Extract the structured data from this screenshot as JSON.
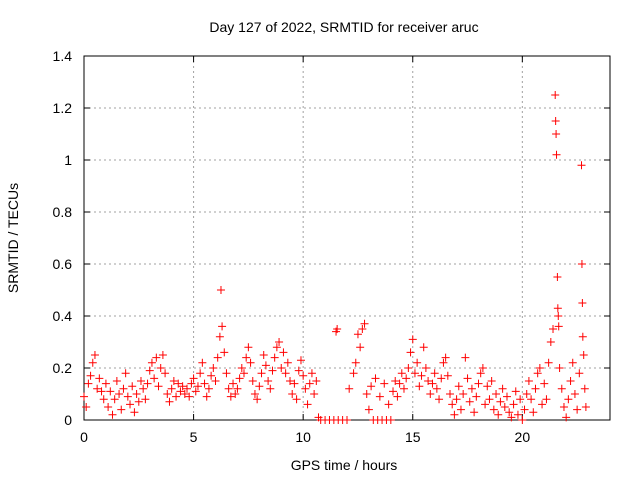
{
  "chart_data": {
    "type": "scatter",
    "title": "Day 127 of 2022, SRMTID for receiver aruc",
    "xlabel": "GPS time / hours",
    "ylabel": "SRMTID / TECUs",
    "xlim": [
      0,
      24
    ],
    "ylim": [
      0,
      1.4
    ],
    "x_ticks": [
      0,
      5,
      10,
      15,
      20
    ],
    "x_tick_labels": [
      "0",
      "5",
      "10",
      "15",
      "20"
    ],
    "y_ticks": [
      0,
      0.2,
      0.4,
      0.6,
      0.8,
      1.0,
      1.2,
      1.4
    ],
    "y_tick_labels": [
      "0",
      "0.2",
      "0.4",
      "0.6",
      "0.8",
      "1",
      "1.2",
      "1.4"
    ],
    "grid": true,
    "marker": "+",
    "color": "#ff0000",
    "series": [
      {
        "name": "SRMTID",
        "points": [
          [
            0.0,
            0.09
          ],
          [
            0.1,
            0.05
          ],
          [
            0.2,
            0.14
          ],
          [
            0.3,
            0.17
          ],
          [
            0.4,
            0.22
          ],
          [
            0.5,
            0.25
          ],
          [
            0.6,
            0.12
          ],
          [
            0.7,
            0.16
          ],
          [
            0.8,
            0.11
          ],
          [
            0.9,
            0.08
          ],
          [
            1.0,
            0.14
          ],
          [
            1.1,
            0.05
          ],
          [
            1.2,
            0.11
          ],
          [
            1.3,
            0.02
          ],
          [
            1.4,
            0.08
          ],
          [
            1.5,
            0.15
          ],
          [
            1.6,
            0.1
          ],
          [
            1.7,
            0.04
          ],
          [
            1.8,
            0.12
          ],
          [
            1.9,
            0.18
          ],
          [
            2.0,
            0.09
          ],
          [
            2.1,
            0.06
          ],
          [
            2.2,
            0.13
          ],
          [
            2.3,
            0.03
          ],
          [
            2.4,
            0.1
          ],
          [
            2.5,
            0.07
          ],
          [
            2.6,
            0.15
          ],
          [
            2.7,
            0.12
          ],
          [
            2.8,
            0.08
          ],
          [
            2.9,
            0.14
          ],
          [
            3.0,
            0.19
          ],
          [
            3.1,
            0.22
          ],
          [
            3.2,
            0.16
          ],
          [
            3.3,
            0.24
          ],
          [
            3.4,
            0.13
          ],
          [
            3.5,
            0.2
          ],
          [
            3.6,
            0.25
          ],
          [
            3.7,
            0.18
          ],
          [
            3.8,
            0.1
          ],
          [
            3.9,
            0.07
          ],
          [
            4.0,
            0.12
          ],
          [
            4.1,
            0.15
          ],
          [
            4.2,
            0.09
          ],
          [
            4.3,
            0.14
          ],
          [
            4.4,
            0.11
          ],
          [
            4.5,
            0.13
          ],
          [
            4.6,
            0.1
          ],
          [
            4.7,
            0.12
          ],
          [
            4.8,
            0.09
          ],
          [
            4.9,
            0.14
          ],
          [
            5.0,
            0.16
          ],
          [
            5.1,
            0.11
          ],
          [
            5.2,
            0.13
          ],
          [
            5.3,
            0.18
          ],
          [
            5.4,
            0.22
          ],
          [
            5.5,
            0.14
          ],
          [
            5.6,
            0.09
          ],
          [
            5.7,
            0.12
          ],
          [
            5.8,
            0.17
          ],
          [
            5.9,
            0.2
          ],
          [
            6.0,
            0.15
          ],
          [
            6.1,
            0.24
          ],
          [
            6.2,
            0.32
          ],
          [
            6.25,
            0.5
          ],
          [
            6.3,
            0.36
          ],
          [
            6.4,
            0.26
          ],
          [
            6.5,
            0.18
          ],
          [
            6.6,
            0.12
          ],
          [
            6.7,
            0.09
          ],
          [
            6.8,
            0.14
          ],
          [
            6.9,
            0.1
          ],
          [
            7.0,
            0.12
          ],
          [
            7.1,
            0.16
          ],
          [
            7.2,
            0.2
          ],
          [
            7.3,
            0.18
          ],
          [
            7.4,
            0.24
          ],
          [
            7.5,
            0.28
          ],
          [
            7.6,
            0.22
          ],
          [
            7.7,
            0.15
          ],
          [
            7.8,
            0.1
          ],
          [
            7.9,
            0.08
          ],
          [
            8.0,
            0.13
          ],
          [
            8.1,
            0.18
          ],
          [
            8.2,
            0.25
          ],
          [
            8.3,
            0.21
          ],
          [
            8.4,
            0.15
          ],
          [
            8.5,
            0.12
          ],
          [
            8.6,
            0.19
          ],
          [
            8.7,
            0.24
          ],
          [
            8.8,
            0.28
          ],
          [
            8.9,
            0.3
          ],
          [
            9.0,
            0.2
          ],
          [
            9.1,
            0.26
          ],
          [
            9.2,
            0.18
          ],
          [
            9.3,
            0.22
          ],
          [
            9.4,
            0.15
          ],
          [
            9.5,
            0.1
          ],
          [
            9.6,
            0.14
          ],
          [
            9.7,
            0.08
          ],
          [
            9.8,
            0.19
          ],
          [
            9.9,
            0.23
          ],
          [
            10.0,
            0.17
          ],
          [
            10.1,
            0.12
          ],
          [
            10.2,
            0.06
          ],
          [
            10.3,
            0.14
          ],
          [
            10.4,
            0.18
          ],
          [
            10.5,
            0.1
          ],
          [
            10.6,
            0.15
          ],
          [
            10.7,
            0.01
          ],
          [
            10.8,
            0.0
          ],
          [
            11.0,
            0.0
          ],
          [
            11.2,
            0.0
          ],
          [
            11.4,
            0.0
          ],
          [
            11.6,
            0.0
          ],
          [
            11.8,
            0.0
          ],
          [
            12.0,
            0.0
          ],
          [
            11.5,
            0.34
          ],
          [
            11.55,
            0.35
          ],
          [
            12.1,
            0.12
          ],
          [
            12.3,
            0.18
          ],
          [
            12.4,
            0.22
          ],
          [
            12.5,
            0.33
          ],
          [
            12.6,
            0.28
          ],
          [
            12.7,
            0.35
          ],
          [
            12.8,
            0.37
          ],
          [
            12.9,
            0.1
          ],
          [
            13.0,
            0.04
          ],
          [
            13.1,
            0.13
          ],
          [
            13.2,
            0.0
          ],
          [
            13.4,
            0.0
          ],
          [
            13.6,
            0.0
          ],
          [
            13.8,
            0.0
          ],
          [
            14.0,
            0.0
          ],
          [
            13.3,
            0.16
          ],
          [
            13.5,
            0.09
          ],
          [
            13.7,
            0.14
          ],
          [
            13.9,
            0.06
          ],
          [
            14.1,
            0.11
          ],
          [
            14.2,
            0.15
          ],
          [
            14.3,
            0.09
          ],
          [
            14.4,
            0.14
          ],
          [
            14.5,
            0.18
          ],
          [
            14.6,
            0.12
          ],
          [
            14.7,
            0.16
          ],
          [
            14.8,
            0.2
          ],
          [
            14.9,
            0.26
          ],
          [
            15.0,
            0.31
          ],
          [
            15.1,
            0.18
          ],
          [
            15.2,
            0.22
          ],
          [
            15.3,
            0.13
          ],
          [
            15.4,
            0.17
          ],
          [
            15.5,
            0.28
          ],
          [
            15.6,
            0.2
          ],
          [
            15.7,
            0.15
          ],
          [
            15.8,
            0.1
          ],
          [
            15.9,
            0.14
          ],
          [
            16.0,
            0.18
          ],
          [
            16.1,
            0.12
          ],
          [
            16.2,
            0.08
          ],
          [
            16.3,
            0.16
          ],
          [
            16.4,
            0.22
          ],
          [
            16.5,
            0.24
          ],
          [
            16.6,
            0.17
          ],
          [
            16.7,
            0.1
          ],
          [
            16.8,
            0.06
          ],
          [
            16.9,
            0.02
          ],
          [
            17.0,
            0.08
          ],
          [
            17.1,
            0.13
          ],
          [
            17.2,
            0.04
          ],
          [
            17.3,
            0.1
          ],
          [
            17.4,
            0.24
          ],
          [
            17.5,
            0.16
          ],
          [
            17.6,
            0.07
          ],
          [
            17.7,
            0.12
          ],
          [
            17.8,
            0.03
          ],
          [
            17.9,
            0.09
          ],
          [
            18.0,
            0.14
          ],
          [
            18.1,
            0.18
          ],
          [
            18.2,
            0.2
          ],
          [
            18.3,
            0.06
          ],
          [
            18.4,
            0.13
          ],
          [
            18.5,
            0.08
          ],
          [
            18.6,
            0.15
          ],
          [
            18.7,
            0.04
          ],
          [
            18.8,
            0.1
          ],
          [
            18.9,
            0.02
          ],
          [
            19.0,
            0.07
          ],
          [
            19.1,
            0.12
          ],
          [
            19.2,
            0.05
          ],
          [
            19.3,
            0.09
          ],
          [
            19.4,
            0.03
          ],
          [
            19.5,
            0.01
          ],
          [
            19.6,
            0.06
          ],
          [
            19.7,
            0.11
          ],
          [
            19.8,
            0.02
          ],
          [
            19.9,
            0.08
          ],
          [
            20.0,
            0.0
          ],
          [
            20.1,
            0.04
          ],
          [
            20.2,
            0.1
          ],
          [
            20.3,
            0.15
          ],
          [
            20.4,
            0.08
          ],
          [
            20.5,
            0.03
          ],
          [
            20.6,
            0.12
          ],
          [
            20.7,
            0.18
          ],
          [
            20.8,
            0.2
          ],
          [
            20.9,
            0.06
          ],
          [
            21.0,
            0.14
          ],
          [
            21.1,
            0.08
          ],
          [
            21.2,
            0.22
          ],
          [
            21.3,
            0.3
          ],
          [
            21.4,
            0.35
          ],
          [
            21.5,
            1.25
          ],
          [
            21.52,
            1.15
          ],
          [
            21.54,
            1.1
          ],
          [
            21.56,
            1.02
          ],
          [
            21.6,
            0.55
          ],
          [
            21.62,
            0.43
          ],
          [
            21.64,
            0.4
          ],
          [
            21.66,
            0.36
          ],
          [
            21.7,
            0.2
          ],
          [
            21.8,
            0.12
          ],
          [
            21.9,
            0.05
          ],
          [
            22.0,
            0.01
          ],
          [
            22.1,
            0.08
          ],
          [
            22.2,
            0.15
          ],
          [
            22.3,
            0.22
          ],
          [
            22.4,
            0.1
          ],
          [
            22.5,
            0.04
          ],
          [
            22.6,
            0.18
          ],
          [
            22.7,
            0.98
          ],
          [
            22.72,
            0.6
          ],
          [
            22.74,
            0.45
          ],
          [
            22.76,
            0.32
          ],
          [
            22.8,
            0.25
          ],
          [
            22.85,
            0.12
          ],
          [
            22.9,
            0.05
          ]
        ]
      }
    ]
  }
}
